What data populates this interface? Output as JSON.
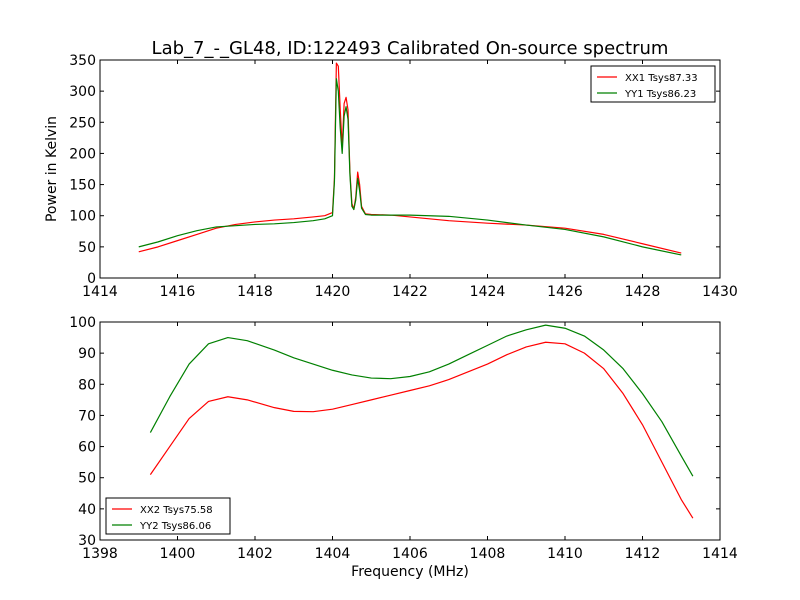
{
  "figure_title": "Lab_7_-_GL48, ID:122493 Calibrated On-source spectrum",
  "chart_data": [
    {
      "type": "line",
      "title": "Lab_7_-_GL48, ID:122493 Calibrated On-source spectrum",
      "xlabel": "",
      "ylabel": "Power in Kelvin",
      "xlim": [
        1414,
        1430
      ],
      "ylim": [
        0,
        350
      ],
      "xticks": [
        "1414",
        "1416",
        "1418",
        "1420",
        "1422",
        "1424",
        "1426",
        "1428",
        "1430"
      ],
      "yticks": [
        "0",
        "50",
        "100",
        "150",
        "200",
        "250",
        "300",
        "350"
      ],
      "grid": false,
      "legend_position": "top-right",
      "series": [
        {
          "name": "XX1 Tsys87.33",
          "color": "#ff0000",
          "points": [
            [
              1415.0,
              42
            ],
            [
              1415.5,
              50
            ],
            [
              1416.0,
              60
            ],
            [
              1416.5,
              70
            ],
            [
              1417.0,
              80
            ],
            [
              1417.5,
              86
            ],
            [
              1418.0,
              90
            ],
            [
              1418.5,
              93
            ],
            [
              1419.0,
              95
            ],
            [
              1419.5,
              98
            ],
            [
              1419.8,
              100
            ],
            [
              1420.0,
              105
            ],
            [
              1420.05,
              160
            ],
            [
              1420.1,
              345
            ],
            [
              1420.15,
              340
            ],
            [
              1420.2,
              270
            ],
            [
              1420.25,
              210
            ],
            [
              1420.3,
              280
            ],
            [
              1420.35,
              290
            ],
            [
              1420.4,
              270
            ],
            [
              1420.45,
              170
            ],
            [
              1420.5,
              120
            ],
            [
              1420.55,
              110
            ],
            [
              1420.6,
              130
            ],
            [
              1420.65,
              170
            ],
            [
              1420.7,
              150
            ],
            [
              1420.75,
              115
            ],
            [
              1420.85,
              103
            ],
            [
              1421.0,
              102
            ],
            [
              1421.5,
              101
            ],
            [
              1422.0,
              98
            ],
            [
              1423.0,
              92
            ],
            [
              1424.0,
              88
            ],
            [
              1425.0,
              85
            ],
            [
              1426.0,
              80
            ],
            [
              1427.0,
              70
            ],
            [
              1428.0,
              55
            ],
            [
              1429.0,
              40
            ]
          ]
        },
        {
          "name": "YY1 Tsys86.23",
          "color": "#008000",
          "points": [
            [
              1415.0,
              50
            ],
            [
              1415.5,
              58
            ],
            [
              1416.0,
              68
            ],
            [
              1416.5,
              76
            ],
            [
              1417.0,
              82
            ],
            [
              1417.5,
              84
            ],
            [
              1418.0,
              86
            ],
            [
              1418.5,
              87
            ],
            [
              1419.0,
              89
            ],
            [
              1419.5,
              92
            ],
            [
              1419.8,
              95
            ],
            [
              1420.0,
              100
            ],
            [
              1420.05,
              155
            ],
            [
              1420.1,
              320
            ],
            [
              1420.15,
              300
            ],
            [
              1420.2,
              240
            ],
            [
              1420.25,
              200
            ],
            [
              1420.3,
              260
            ],
            [
              1420.35,
              275
            ],
            [
              1420.4,
              255
            ],
            [
              1420.45,
              165
            ],
            [
              1420.5,
              115
            ],
            [
              1420.55,
              110
            ],
            [
              1420.6,
              125
            ],
            [
              1420.65,
              160
            ],
            [
              1420.7,
              140
            ],
            [
              1420.75,
              112
            ],
            [
              1420.85,
              102
            ],
            [
              1421.0,
              101
            ],
            [
              1421.5,
              101
            ],
            [
              1422.0,
              101
            ],
            [
              1423.0,
              99
            ],
            [
              1424.0,
              93
            ],
            [
              1425.0,
              85
            ],
            [
              1426.0,
              78
            ],
            [
              1427.0,
              66
            ],
            [
              1428.0,
              50
            ],
            [
              1429.0,
              37
            ]
          ]
        }
      ]
    },
    {
      "type": "line",
      "title": "",
      "xlabel": "Frequency (MHz)",
      "ylabel": "",
      "xlim": [
        1398,
        1414
      ],
      "ylim": [
        30,
        100
      ],
      "xticks": [
        "1398",
        "1400",
        "1402",
        "1404",
        "1406",
        "1408",
        "1410",
        "1412",
        "1414"
      ],
      "yticks": [
        "30",
        "40",
        "50",
        "60",
        "70",
        "80",
        "90",
        "100"
      ],
      "grid": false,
      "legend_position": "bottom-left",
      "series": [
        {
          "name": "XX2 Tsys75.58",
          "color": "#ff0000",
          "points": [
            [
              1399.3,
              51
            ],
            [
              1399.8,
              60
            ],
            [
              1400.3,
              69
            ],
            [
              1400.8,
              74.5
            ],
            [
              1401.3,
              76
            ],
            [
              1401.8,
              75
            ],
            [
              1402.5,
              72.5
            ],
            [
              1403.0,
              71.3
            ],
            [
              1403.5,
              71.2
            ],
            [
              1404.0,
              72
            ],
            [
              1404.5,
              73.5
            ],
            [
              1405.0,
              75
            ],
            [
              1405.5,
              76.5
            ],
            [
              1406.0,
              78
            ],
            [
              1406.5,
              79.5
            ],
            [
              1407.0,
              81.5
            ],
            [
              1407.5,
              84
            ],
            [
              1408.0,
              86.5
            ],
            [
              1408.5,
              89.5
            ],
            [
              1409.0,
              92
            ],
            [
              1409.5,
              93.5
            ],
            [
              1410.0,
              93
            ],
            [
              1410.5,
              90
            ],
            [
              1411.0,
              85
            ],
            [
              1411.5,
              77
            ],
            [
              1412.0,
              67
            ],
            [
              1412.5,
              55
            ],
            [
              1413.0,
              43
            ],
            [
              1413.3,
              37
            ]
          ]
        },
        {
          "name": "YY2 Tsys86.06",
          "color": "#008000",
          "points": [
            [
              1399.3,
              64.5
            ],
            [
              1399.8,
              76
            ],
            [
              1400.3,
              86.5
            ],
            [
              1400.8,
              93
            ],
            [
              1401.3,
              95
            ],
            [
              1401.8,
              94
            ],
            [
              1402.5,
              91
            ],
            [
              1403.0,
              88.5
            ],
            [
              1403.5,
              86.5
            ],
            [
              1404.0,
              84.5
            ],
            [
              1404.5,
              83
            ],
            [
              1405.0,
              82
            ],
            [
              1405.5,
              81.8
            ],
            [
              1406.0,
              82.5
            ],
            [
              1406.5,
              84
            ],
            [
              1407.0,
              86.5
            ],
            [
              1407.5,
              89.5
            ],
            [
              1408.0,
              92.5
            ],
            [
              1408.5,
              95.5
            ],
            [
              1409.0,
              97.5
            ],
            [
              1409.5,
              99
            ],
            [
              1410.0,
              98
            ],
            [
              1410.5,
              95.5
            ],
            [
              1411.0,
              91
            ],
            [
              1411.5,
              85
            ],
            [
              1412.0,
              77
            ],
            [
              1412.5,
              68
            ],
            [
              1413.0,
              57
            ],
            [
              1413.3,
              50.5
            ]
          ]
        }
      ]
    }
  ]
}
